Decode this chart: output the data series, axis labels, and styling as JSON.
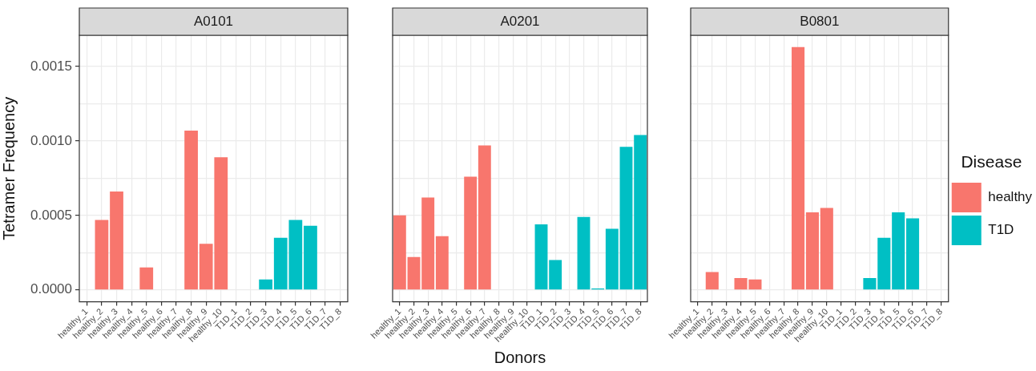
{
  "chart_data": [
    {
      "type": "bar",
      "title": "A0101",
      "ylabel": "Tetramer Frequency",
      "categories": [
        "healthy_1",
        "healthy_2",
        "healthy_3",
        "healthy_4",
        "healthy_5",
        "healthy_6",
        "healthy_7",
        "healthy_8",
        "healthy_9",
        "healthy_10",
        "T1D_1",
        "T1D_2",
        "T1D_3",
        "T1D_4",
        "T1D_5",
        "T1D_6",
        "T1D_7",
        "T1D_8"
      ],
      "series": [
        {
          "color": "#f8766d",
          "values": [
            null,
            0.00047,
            0.00066,
            null,
            0.00015,
            null,
            null,
            0.00107,
            0.00031,
            0.00089,
            null,
            null,
            null,
            null,
            null,
            null,
            null,
            null
          ]
        },
        {
          "color": "#00bfc4",
          "values": [
            null,
            null,
            null,
            null,
            null,
            null,
            null,
            null,
            null,
            null,
            null,
            null,
            7e-05,
            0.00035,
            0.00047,
            0.00043,
            null,
            null
          ]
        }
      ],
      "ylim": [
        -8e-05,
        0.00171
      ],
      "yticks": [
        {
          "value": 0,
          "label": "0.0000"
        },
        {
          "value": 0.00025,
          "label": null
        },
        0.0005,
        {
          "value": 0.00075,
          "label": null
        },
        {
          "value": 0.001,
          "label": "0.0010"
        },
        {
          "value": 0.00125,
          "label": null
        },
        0.0015
      ],
      "grid": true
    },
    {
      "type": "bar",
      "title": "A0201",
      "xlabel": "Donors",
      "categories": [
        "healthy_1",
        "healthy_2",
        "healthy_3",
        "healthy_4",
        "healthy_5",
        "healthy_6",
        "healthy_7",
        "healthy_8",
        "healthy_9",
        "healthy_10",
        "T1D_1",
        "T1D_2",
        "T1D_3",
        "T1D_4",
        "T1D_5",
        "T1D_6",
        "T1D_7",
        "T1D_8"
      ],
      "series": [
        {
          "color": "#f8766d",
          "values": [
            0.0005,
            0.00022,
            0.00062,
            0.00036,
            null,
            0.00076,
            0.00097,
            null,
            null,
            null,
            null,
            null,
            null,
            null,
            null,
            null,
            null,
            null
          ]
        },
        {
          "color": "#00bfc4",
          "values": [
            null,
            null,
            null,
            null,
            null,
            null,
            null,
            null,
            null,
            null,
            0.00044,
            0.0002,
            null,
            0.00049,
            1e-05,
            0.00041,
            0.00096,
            0.00104
          ]
        }
      ],
      "ylim": [
        -8e-05,
        0.00171
      ],
      "yticks": [
        {
          "value": 0,
          "label": null
        },
        {
          "value": 0.00025,
          "label": null
        },
        {
          "value": 0.0005,
          "label": null
        },
        {
          "value": 0.00075,
          "label": null
        },
        {
          "value": 0.001,
          "label": null
        },
        {
          "value": 0.00125,
          "label": null
        },
        {
          "value": 0.0015,
          "label": null
        }
      ],
      "tick_labels": "x",
      "grid": true
    },
    {
      "type": "bar",
      "title": "B0801",
      "legend_title": "Disease",
      "legend": "right",
      "categories": [
        "healthy_1",
        "healthy_2",
        "healthy_3",
        "healthy_4",
        "healthy_5",
        "healthy_6",
        "healthy_7",
        "healthy_8",
        "healthy_9",
        "healthy_10",
        "T1D_1",
        "T1D_2",
        "T1D_3",
        "T1D_4",
        "T1D_5",
        "T1D_6",
        "T1D_7",
        "T1D_8"
      ],
      "series": [
        {
          "name": "healthy",
          "color": "#f8766d",
          "values": [
            null,
            0.00012,
            null,
            8e-05,
            7e-05,
            null,
            null,
            0.00163,
            0.00052,
            0.00055,
            null,
            null,
            null,
            null,
            null,
            null,
            null,
            null
          ]
        },
        {
          "name": "T1D",
          "color": "#00bfc4",
          "values": [
            null,
            null,
            null,
            null,
            null,
            null,
            null,
            null,
            null,
            null,
            null,
            null,
            8e-05,
            0.00035,
            0.00052,
            0.00048,
            null,
            null
          ]
        }
      ],
      "ylim": [
        -8e-05,
        0.00171
      ],
      "yticks": [
        {
          "value": 0,
          "label": null
        },
        {
          "value": 0.00025,
          "label": null
        },
        {
          "value": 0.0005,
          "label": null
        },
        {
          "value": 0.00075,
          "label": null
        },
        {
          "value": 0.001,
          "label": null
        },
        {
          "value": 0.00125,
          "label": null
        },
        {
          "value": 0.0015,
          "label": null
        }
      ],
      "tick_labels": "x",
      "grid": true
    }
  ]
}
